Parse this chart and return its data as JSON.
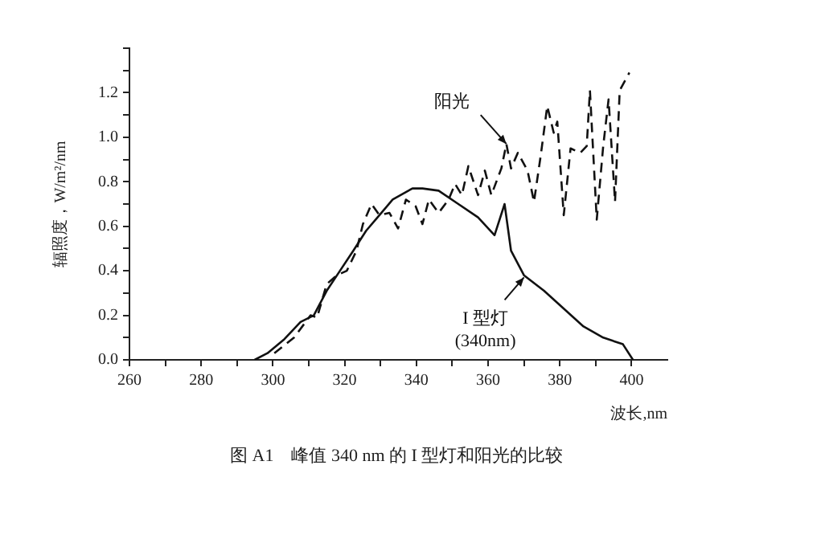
{
  "chart_data": {
    "type": "line",
    "title": "图 A1　峰值 340 nm 的 I 型灯和阳光的比较",
    "xlabel": "波长,nm",
    "ylabel": "辐照度，W/m²/nm",
    "xlim": [
      260,
      410
    ],
    "xticks": [
      260,
      {
        "value": 270,
        "label": null
      },
      280,
      {
        "value": 290,
        "label": null
      },
      300,
      {
        "value": 310,
        "label": null
      },
      320,
      {
        "value": 330,
        "label": null
      },
      340,
      {
        "value": 350,
        "label": null
      },
      360,
      {
        "value": 370,
        "label": null
      },
      380,
      {
        "value": 390,
        "label": null
      },
      400
    ],
    "ylim": [
      0,
      1.4
    ],
    "yticks": [
      {
        "value": 0,
        "label": "0.0"
      },
      {
        "value": 0.1,
        "label": null
      },
      {
        "value": 0.2,
        "label": "0.2"
      },
      {
        "value": 0.3,
        "label": null
      },
      {
        "value": 0.4,
        "label": "0.4"
      },
      {
        "value": 0.5,
        "label": null
      },
      {
        "value": 0.6,
        "label": "0.6"
      },
      {
        "value": 0.7,
        "label": null
      },
      {
        "value": 0.8,
        "label": "0.8"
      },
      {
        "value": 0.9,
        "label": null
      },
      {
        "value": 1.0,
        "label": "1.0"
      },
      {
        "value": 1.1,
        "label": null
      },
      {
        "value": 1.2,
        "label": "1.2"
      },
      {
        "value": 1.3,
        "label": null
      },
      {
        "value": 1.4,
        "label": null
      }
    ],
    "grid": false,
    "legend": false,
    "marker": "none",
    "series": [
      {
        "color": "#111111",
        "line_style": "solid",
        "x": [
          294.9,
          298.5,
          303,
          307.7,
          311.4,
          315,
          318.7,
          322.4,
          326,
          329.7,
          333.4,
          338.9,
          341.7,
          346.2,
          351.7,
          357.2,
          361.8,
          364.6,
          366.4,
          370,
          375.6,
          381.1,
          386.6,
          392.1,
          397.6,
          400.4
        ],
        "values": [
          0.0,
          0.03,
          0.09,
          0.17,
          0.2,
          0.31,
          0.4,
          0.49,
          0.58,
          0.65,
          0.72,
          0.77,
          0.77,
          0.76,
          0.7,
          0.64,
          0.56,
          0.7,
          0.49,
          0.38,
          0.31,
          0.23,
          0.15,
          0.1,
          0.07,
          0.0
        ]
      },
      {
        "color": "#111111",
        "line_style": "dashed",
        "x": [
          300.4,
          305.9,
          310.5,
          312.3,
          315,
          317.8,
          320.6,
          323.3,
          325.1,
          327.5,
          329.7,
          332.5,
          334.9,
          337.1,
          339.8,
          341.7,
          343.5,
          346.2,
          349,
          350.8,
          352.7,
          354.5,
          357.2,
          359.1,
          360.9,
          363.7,
          365.1,
          366.4,
          368.3,
          371,
          372.8,
          374.7,
          376.5,
          378.3,
          379.3,
          381.1,
          383,
          385.7,
          387.5,
          388.4,
          390.3,
          392.1,
          393.6,
          395.4,
          396.7,
          399.4
        ],
        "values": [
          0.03,
          0.1,
          0.2,
          0.19,
          0.34,
          0.38,
          0.4,
          0.49,
          0.61,
          0.7,
          0.65,
          0.66,
          0.59,
          0.72,
          0.69,
          0.61,
          0.72,
          0.66,
          0.72,
          0.79,
          0.74,
          0.87,
          0.74,
          0.85,
          0.74,
          0.86,
          0.97,
          0.86,
          0.93,
          0.85,
          0.71,
          0.92,
          1.14,
          1.02,
          1.07,
          0.65,
          0.95,
          0.93,
          0.96,
          1.21,
          0.63,
          0.96,
          1.17,
          0.71,
          1.21,
          1.29
        ]
      }
    ],
    "annotations": [
      {
        "text": "阳光",
        "x": 365.1,
        "y": 0.97
      },
      {
        "text": "I 型灯\n(340nm)",
        "x": 370,
        "y": 0.37
      }
    ]
  }
}
